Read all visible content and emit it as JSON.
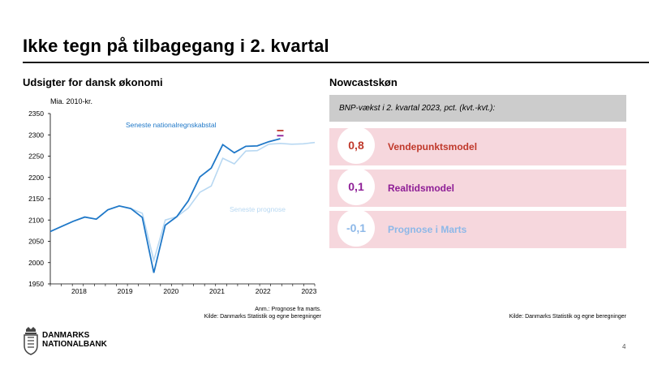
{
  "title": "Ikke tegn på tilbagegang i 2. kvartal",
  "left": {
    "subtitle": "Udsigter for dansk økonomi",
    "unit": "Mia. 2010-kr.",
    "note1": "Anm.: Prognose fra marts.",
    "note2": "Kilde: Danmarks Statistik og egne beregninger"
  },
  "right": {
    "subtitle": "Nowcastskøn",
    "header": "BNP-vækst i 2. kvartal 2023, pct. (kvt.-kvt.):",
    "rows": [
      {
        "value": "0,8",
        "label": "Vendepunktsmodel",
        "color": "#c0392b"
      },
      {
        "value": "0,1",
        "label": "Realtidsmodel",
        "color": "#8e1e96"
      },
      {
        "value": "-0,1",
        "label": "Prognose i Marts",
        "color": "#8db8e8"
      }
    ],
    "source": "Kilde: Danmarks Statistik og egne beregninger"
  },
  "logo": {
    "line1": "DANMARKS",
    "line2": "NATIONALBANK"
  },
  "page_number": "4",
  "chart_data": {
    "type": "line",
    "ylabel": "Mia. 2010-kr.",
    "ylim": [
      1950,
      2350
    ],
    "yticks": [
      1950,
      2000,
      2050,
      2100,
      2150,
      2200,
      2250,
      2300,
      2350
    ],
    "xticks": [
      "2018",
      "2019",
      "2020",
      "2021",
      "2022",
      "2023"
    ],
    "xlim": [
      2017.875,
      2023.625
    ],
    "grid": false,
    "series": [
      {
        "name": "Seneste nationalregnskabstal",
        "color": "#1f78c8",
        "points": [
          [
            2017.875,
            2073
          ],
          [
            2018.125,
            2085
          ],
          [
            2018.375,
            2097
          ],
          [
            2018.625,
            2107
          ],
          [
            2018.875,
            2102
          ],
          [
            2019.125,
            2124
          ],
          [
            2019.375,
            2133
          ],
          [
            2019.625,
            2127
          ],
          [
            2019.875,
            2106
          ],
          [
            2020.125,
            1976
          ],
          [
            2020.375,
            2088
          ],
          [
            2020.625,
            2108
          ],
          [
            2020.875,
            2145
          ],
          [
            2021.125,
            2201
          ],
          [
            2021.375,
            2222
          ],
          [
            2021.625,
            2277
          ],
          [
            2021.875,
            2258
          ],
          [
            2022.125,
            2273
          ],
          [
            2022.375,
            2274
          ],
          [
            2022.625,
            2284
          ],
          [
            2022.875,
            2291
          ]
        ]
      },
      {
        "name": "Seneste prognose",
        "color": "#b8d8f2",
        "points": [
          [
            2019.625,
            2127
          ],
          [
            2019.875,
            2116
          ],
          [
            2020.125,
            2005
          ],
          [
            2020.375,
            2100
          ],
          [
            2020.625,
            2108
          ],
          [
            2020.875,
            2128
          ],
          [
            2021.125,
            2165
          ],
          [
            2021.375,
            2180
          ],
          [
            2021.625,
            2245
          ],
          [
            2021.875,
            2232
          ],
          [
            2022.125,
            2262
          ],
          [
            2022.375,
            2263
          ],
          [
            2022.625,
            2278
          ],
          [
            2022.875,
            2280
          ],
          [
            2023.125,
            2278
          ],
          [
            2023.375,
            2279
          ],
          [
            2023.625,
            2282
          ]
        ]
      }
    ],
    "markers": [
      {
        "x": 2022.875,
        "y": 2310,
        "color": "#c0392b"
      },
      {
        "x": 2022.875,
        "y": 2298,
        "color": "#8e1e96"
      }
    ]
  }
}
